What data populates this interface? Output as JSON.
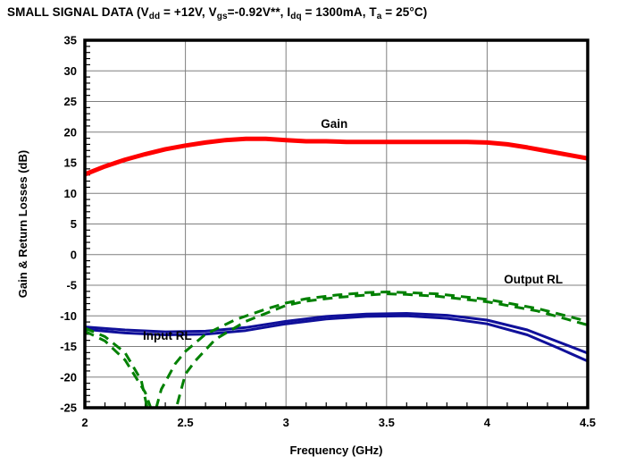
{
  "header": {
    "parts": [
      {
        "text": "SMALL SIGNAL DATA (V"
      },
      {
        "text": "dd",
        "sub": true
      },
      {
        "text": " = +12V, V"
      },
      {
        "text": "gs",
        "sub": true
      },
      {
        "text": "=-0.92V**, I"
      },
      {
        "text": "dq",
        "sub": true
      },
      {
        "text": " = 1300mA, T"
      },
      {
        "text": "a",
        "sub": true
      },
      {
        "text": " = 25°C)"
      }
    ]
  },
  "colors": {
    "gain": "#ff0000",
    "input_rl": "#10109a",
    "output_rl": "#008000",
    "grid": "#7f7f7f",
    "axis": "#000000",
    "background": "#ffffff"
  },
  "chart_data": {
    "type": "line",
    "title": "SMALL SIGNAL DATA (Vdd = +12V, Vgs=-0.92V**, Idq = 1300mA, Ta = 25°C)",
    "xlabel": "Frequency (GHz)",
    "ylabel": "Gain & Return Losses (dB)",
    "xlim": [
      2,
      4.5
    ],
    "ylim": [
      -25,
      35
    ],
    "x_ticks": [
      2,
      2.5,
      3,
      3.5,
      4,
      4.5
    ],
    "x_tick_labels": [
      "2",
      "2.5",
      "3",
      "3.5",
      "4",
      "4.5"
    ],
    "y_ticks": [
      35,
      30,
      25,
      20,
      15,
      10,
      5,
      0,
      -5,
      -10,
      -15,
      -20,
      -25
    ],
    "y_tick_labels": [
      "35",
      "30",
      "25",
      "20",
      "15",
      "10",
      "5",
      "0",
      "-5",
      "-10",
      "-15",
      "-20",
      "-25"
    ],
    "x_minor_step": 0.1,
    "y_minor_step": 1,
    "grid": true,
    "legend_position": "none",
    "annotations": [
      {
        "text": "Gain",
        "x": 3.24,
        "y": 20.7,
        "color": "#000000"
      },
      {
        "text": "Input RL",
        "x": 2.41,
        "y": -13.9,
        "color": "#000000"
      },
      {
        "text": "Output RL",
        "x": 4.23,
        "y": -4.7,
        "color": "#000000"
      }
    ],
    "series": [
      {
        "name": "Gain",
        "color": "#ff0000",
        "dashed": false,
        "width": 5,
        "points": [
          [
            2.0,
            13.1
          ],
          [
            2.1,
            14.4
          ],
          [
            2.2,
            15.5
          ],
          [
            2.3,
            16.4
          ],
          [
            2.4,
            17.2
          ],
          [
            2.5,
            17.8
          ],
          [
            2.6,
            18.3
          ],
          [
            2.7,
            18.7
          ],
          [
            2.8,
            18.9
          ],
          [
            2.9,
            18.9
          ],
          [
            3.0,
            18.7
          ],
          [
            3.1,
            18.5
          ],
          [
            3.2,
            18.5
          ],
          [
            3.3,
            18.4
          ],
          [
            3.4,
            18.4
          ],
          [
            3.5,
            18.4
          ],
          [
            3.6,
            18.4
          ],
          [
            3.7,
            18.4
          ],
          [
            3.8,
            18.4
          ],
          [
            3.9,
            18.4
          ],
          [
            4.0,
            18.3
          ],
          [
            4.1,
            18.0
          ],
          [
            4.2,
            17.5
          ],
          [
            4.3,
            16.9
          ],
          [
            4.4,
            16.3
          ],
          [
            4.5,
            15.7
          ]
        ]
      },
      {
        "name": "Input RL trace 1",
        "color": "#10109a",
        "dashed": false,
        "width": 3,
        "points": [
          [
            2.0,
            -11.8
          ],
          [
            2.2,
            -12.3
          ],
          [
            2.4,
            -12.6
          ],
          [
            2.6,
            -12.5
          ],
          [
            2.8,
            -11.9
          ],
          [
            3.0,
            -10.9
          ],
          [
            3.2,
            -10.1
          ],
          [
            3.4,
            -9.7
          ],
          [
            3.6,
            -9.6
          ],
          [
            3.8,
            -9.9
          ],
          [
            4.0,
            -10.7
          ],
          [
            4.2,
            -12.3
          ],
          [
            4.35,
            -14.2
          ],
          [
            4.5,
            -16.1
          ]
        ]
      },
      {
        "name": "Input RL trace 2",
        "color": "#10109a",
        "dashed": false,
        "width": 3,
        "points": [
          [
            2.0,
            -12.2
          ],
          [
            2.2,
            -12.8
          ],
          [
            2.4,
            -13.1
          ],
          [
            2.6,
            -13.0
          ],
          [
            2.8,
            -12.4
          ],
          [
            3.0,
            -11.3
          ],
          [
            3.2,
            -10.5
          ],
          [
            3.4,
            -10.1
          ],
          [
            3.6,
            -10.0
          ],
          [
            3.8,
            -10.4
          ],
          [
            4.0,
            -11.3
          ],
          [
            4.2,
            -13.1
          ],
          [
            4.35,
            -15.2
          ],
          [
            4.5,
            -17.4
          ]
        ]
      },
      {
        "name": "Output RL trace 1",
        "color": "#008000",
        "dashed": true,
        "width": 3,
        "points": [
          [
            2.0,
            -12.0
          ],
          [
            2.1,
            -13.4
          ],
          [
            2.2,
            -16.0
          ],
          [
            2.28,
            -20.5
          ],
          [
            2.33,
            -28.0
          ],
          [
            2.38,
            -22.0
          ],
          [
            2.45,
            -17.8
          ],
          [
            2.5,
            -15.8
          ],
          [
            2.6,
            -13.0
          ],
          [
            2.75,
            -10.6
          ],
          [
            2.9,
            -8.9
          ],
          [
            3.0,
            -7.9
          ],
          [
            3.1,
            -7.2
          ],
          [
            3.25,
            -6.6
          ],
          [
            3.4,
            -6.2
          ],
          [
            3.5,
            -6.1
          ],
          [
            3.6,
            -6.2
          ],
          [
            3.75,
            -6.4
          ],
          [
            4.0,
            -7.3
          ],
          [
            4.25,
            -8.8
          ],
          [
            4.5,
            -10.9
          ]
        ]
      },
      {
        "name": "Output RL trace 2",
        "color": "#008000",
        "dashed": true,
        "width": 3,
        "points": [
          [
            2.0,
            -12.5
          ],
          [
            2.1,
            -14.1
          ],
          [
            2.2,
            -17.2
          ],
          [
            2.3,
            -22.5
          ],
          [
            2.36,
            -28.0
          ],
          [
            2.43,
            -28.0
          ],
          [
            2.5,
            -19.5
          ],
          [
            2.55,
            -17.3
          ],
          [
            2.65,
            -13.8
          ],
          [
            2.8,
            -10.9
          ],
          [
            3.0,
            -8.3
          ],
          [
            3.1,
            -7.6
          ],
          [
            3.25,
            -7.0
          ],
          [
            3.4,
            -6.6
          ],
          [
            3.5,
            -6.4
          ],
          [
            3.6,
            -6.5
          ],
          [
            3.75,
            -6.8
          ],
          [
            4.0,
            -7.7
          ],
          [
            4.25,
            -9.2
          ],
          [
            4.5,
            -11.5
          ]
        ]
      }
    ]
  }
}
